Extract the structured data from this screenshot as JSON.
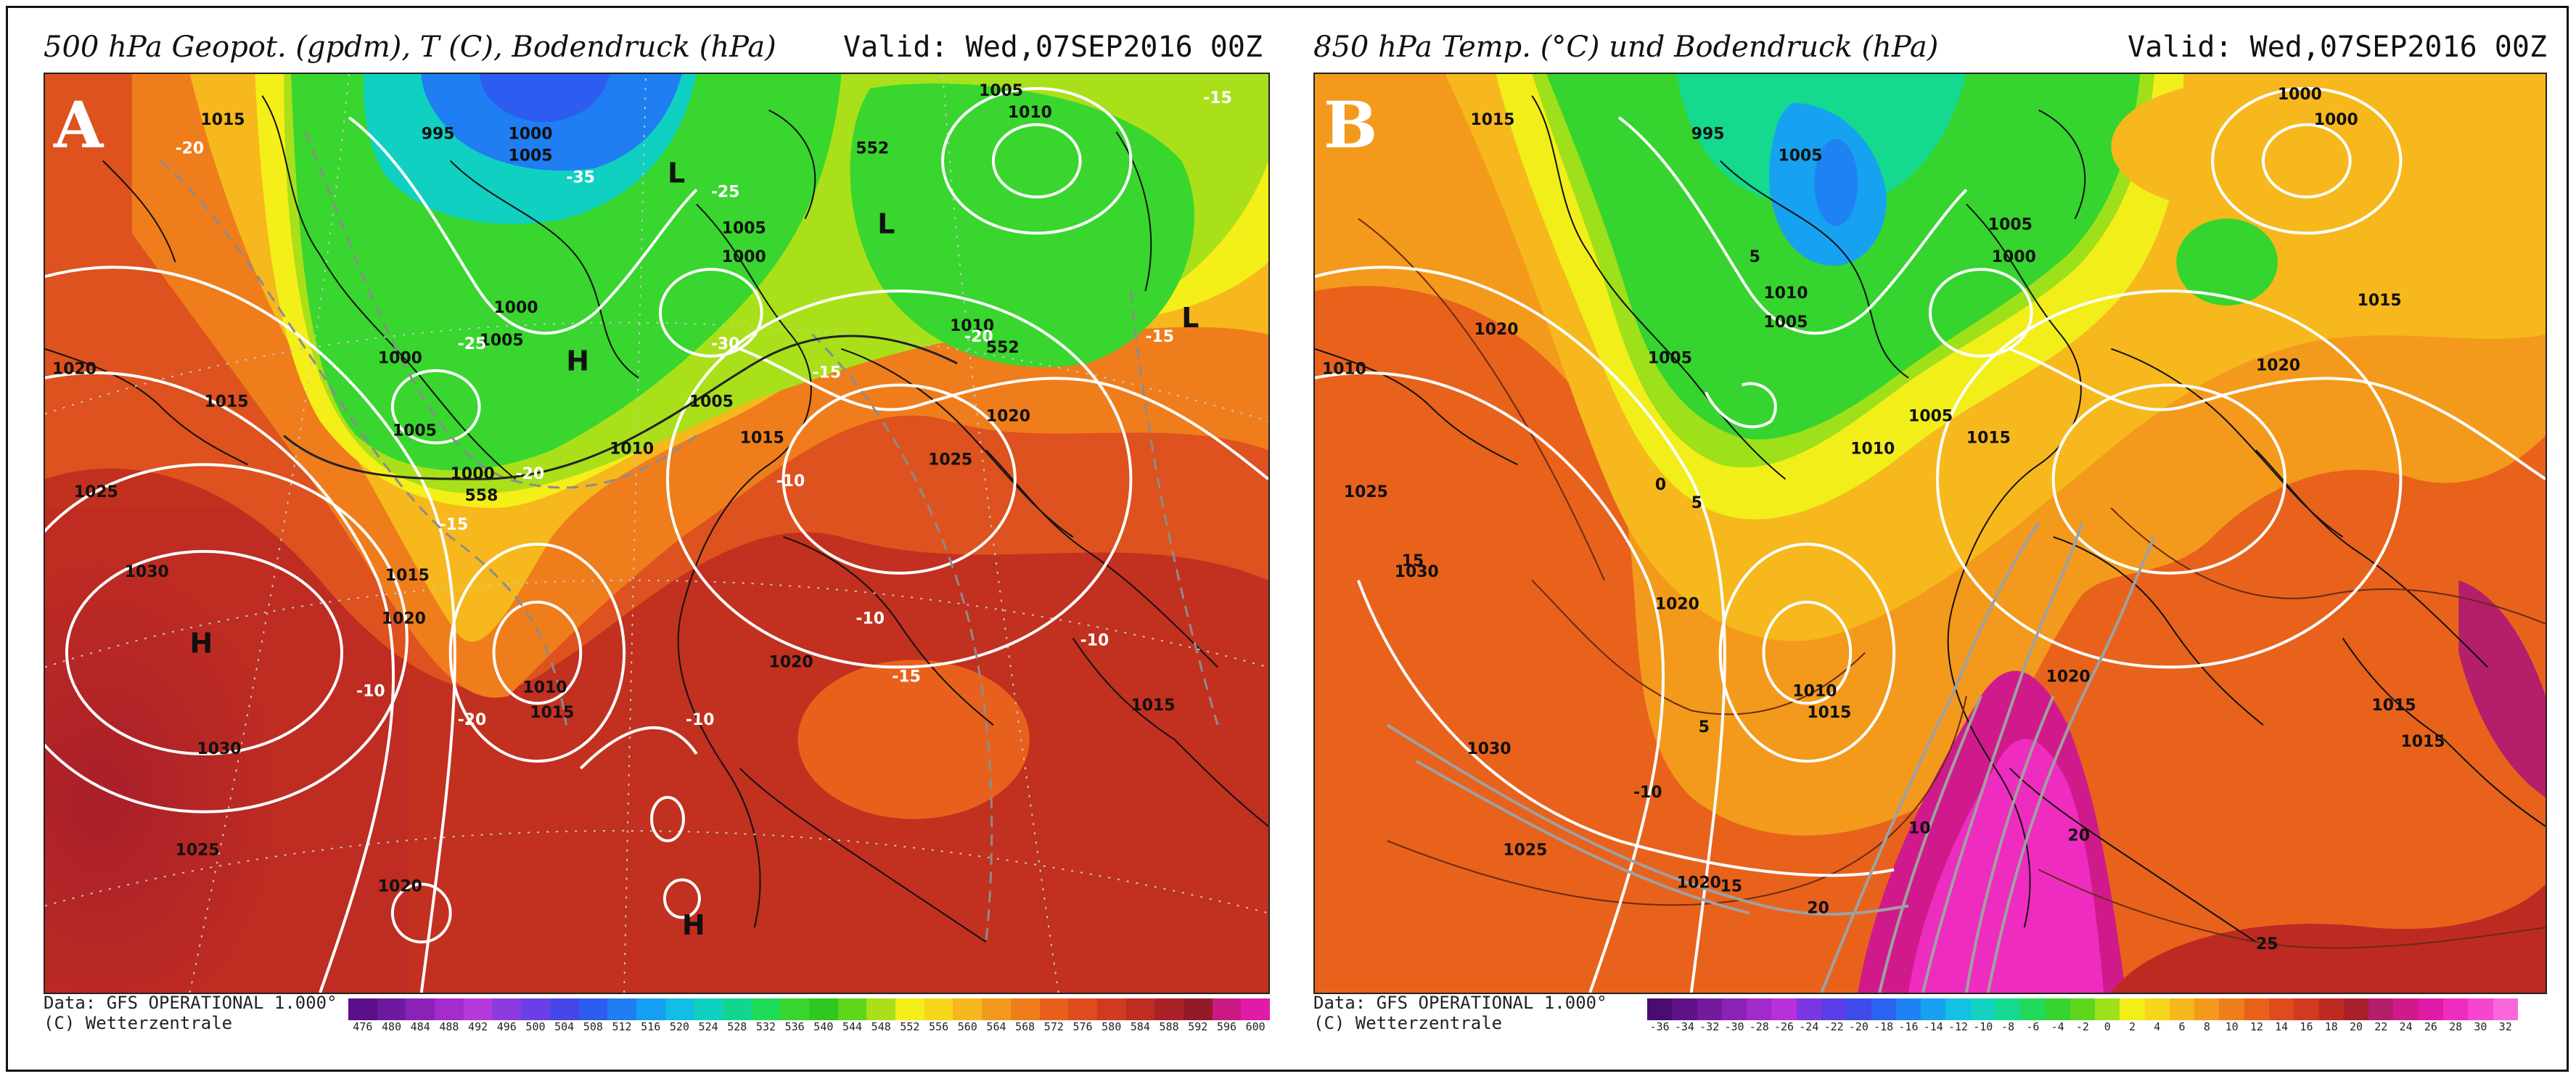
{
  "panel_a": {
    "letter": "A",
    "title": "500 hPa Geopot. (gpdm), T (C), Bodendruck (hPa)",
    "valid": "Valid: Wed,07SEP2016 00Z",
    "source_line1": "Data: GFS OPERATIONAL 1.000°",
    "source_line2": "(C) Wetterzentrale",
    "scale_ticks": [
      "476",
      "480",
      "484",
      "488",
      "492",
      "496",
      "500",
      "504",
      "508",
      "512",
      "516",
      "520",
      "524",
      "528",
      "532",
      "536",
      "540",
      "544",
      "548",
      "552",
      "556",
      "560",
      "564",
      "568",
      "572",
      "576",
      "580",
      "584",
      "588",
      "592",
      "596",
      "600"
    ],
    "scale_colors": [
      "#5b0f8a",
      "#6e1aa0",
      "#8a22b8",
      "#a42ccc",
      "#b53adb",
      "#8c3be0",
      "#6a3fe6",
      "#4646e8",
      "#2f5cf0",
      "#1e7ef2",
      "#149ff2",
      "#12bde8",
      "#10d0c2",
      "#12d690",
      "#1edc5a",
      "#38d62e",
      "#2fc81e",
      "#5ed61c",
      "#a9e01a",
      "#f4ef18",
      "#f7d61a",
      "#f6b81c",
      "#f39a1c",
      "#ef7d1c",
      "#e8611c",
      "#de4c1e",
      "#cf3a20",
      "#be2c22",
      "#a92126",
      "#941a2a",
      "#c91a84",
      "#e11ba8"
    ],
    "pressure_labels": [
      "1015",
      "995",
      "1000",
      "1005",
      "1005",
      "1000",
      "1005",
      "1010",
      "1000",
      "1005",
      "1000",
      "1005",
      "1015",
      "1010",
      "1020",
      "1015",
      "1025",
      "1030",
      "1030",
      "1025",
      "1015",
      "1020",
      "1010",
      "1015",
      "1020",
      "1020",
      "1015",
      "1010",
      "1025",
      "1020",
      "1005",
      "1000"
    ],
    "temp_labels": [
      "-20",
      "-25",
      "-35",
      "-25",
      "-30",
      "-20",
      "-20",
      "-15",
      "-15",
      "-10",
      "-15",
      "-10",
      "-10",
      "-20",
      "-10",
      "-15",
      "-15",
      "-10"
    ],
    "geo_labels": [
      "552",
      "558",
      "552"
    ],
    "highs_lows": [
      "L",
      "L",
      "L",
      "H",
      "H",
      "H"
    ]
  },
  "panel_b": {
    "letter": "B",
    "title": "850 hPa Temp. (°C) und Bodendruck (hPa)",
    "valid": "Valid: Wed,07SEP2016 00Z",
    "source_line1": "Data: GFS OPERATIONAL 1.000°",
    "source_line2": "(C) Wetterzentrale",
    "scale_ticks": [
      "-36",
      "-34",
      "-32",
      "-30",
      "-28",
      "-26",
      "-24",
      "-22",
      "-20",
      "-18",
      "-16",
      "-14",
      "-12",
      "-10",
      "-8",
      "-6",
      "-4",
      "-2",
      "0",
      "2",
      "4",
      "6",
      "8",
      "10",
      "12",
      "14",
      "16",
      "18",
      "20",
      "22",
      "24",
      "26",
      "28",
      "30",
      "32"
    ],
    "scale_colors": [
      "#4a0c6e",
      "#5e1286",
      "#741a9e",
      "#8a22b6",
      "#a02acc",
      "#b632d8",
      "#7a36e0",
      "#5b3ee6",
      "#3e4ae9",
      "#2c62f0",
      "#1f82f2",
      "#16a2f0",
      "#14c0e4",
      "#12d3c0",
      "#14d98e",
      "#22da5a",
      "#36d42e",
      "#5ed61c",
      "#9ee01a",
      "#f2ee1a",
      "#f7d51a",
      "#f6b81c",
      "#f39a1c",
      "#ef7e1c",
      "#e8621c",
      "#de4c1e",
      "#cf3a20",
      "#bd2a22",
      "#a8202a",
      "#b41e6a",
      "#d01a8c",
      "#e21aa8",
      "#ef2cc0",
      "#f646cf",
      "#fa66dc"
    ],
    "pressure_labels": [
      "1015",
      "995",
      "1000",
      "1005",
      "1005",
      "1000",
      "1005",
      "1010",
      "1015",
      "1020",
      "1000",
      "1005",
      "1010",
      "1020",
      "1025",
      "1030",
      "1030",
      "1025",
      "1020",
      "1010",
      "1015",
      "1020",
      "1015",
      "1005",
      "1015",
      "1010",
      "1015",
      "1020"
    ],
    "temp_labels": [
      "15",
      "0",
      "5",
      "5",
      "10",
      "15",
      "20",
      "25",
      "-10",
      "5",
      "20"
    ]
  }
}
